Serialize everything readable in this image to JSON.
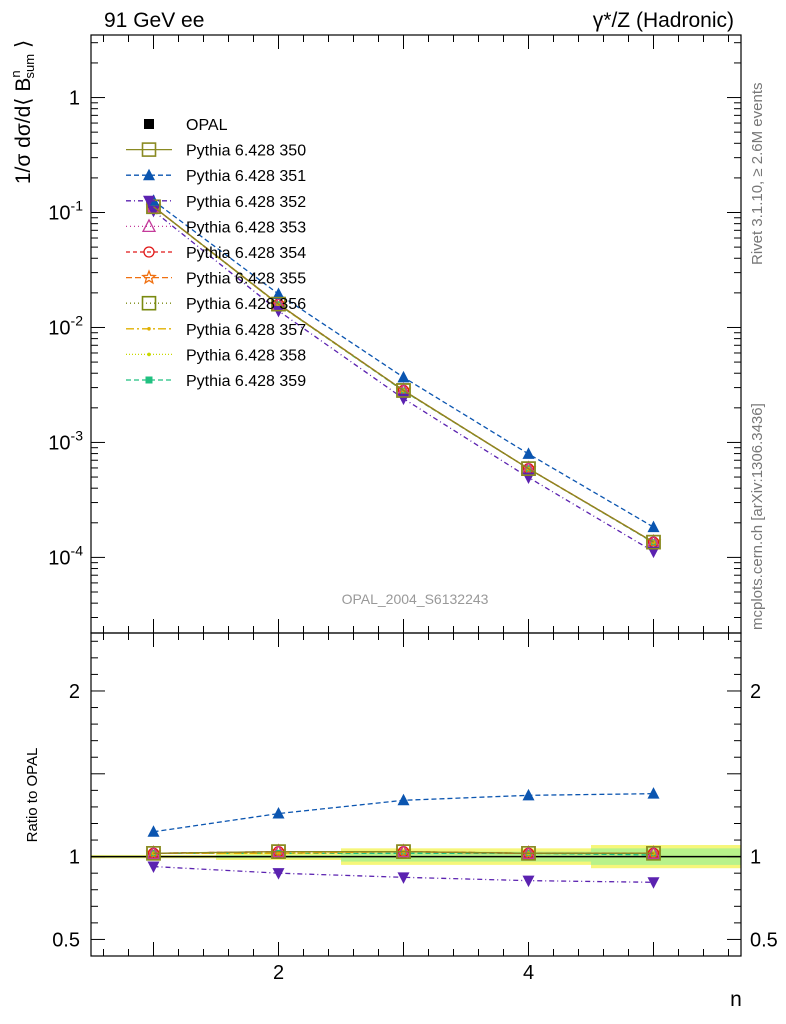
{
  "header": {
    "left": "91 GeV ee",
    "right": "γ*/Z (Hadronic)"
  },
  "side_labels": {
    "rivet": "Rivet 3.1.10, ≥ 2.6M events",
    "mcplots": "mcplots.cern.ch [arXiv:1306.3436]"
  },
  "chart_data": {
    "type": "line",
    "analysis_label": "OPAL_2004_S6132243",
    "xlabel": "n",
    "ylabel": "1/σ dσ/d⟨ B^n_sum ⟩",
    "ratio_ylabel": "Ratio to OPAL",
    "x": [
      1,
      2,
      3,
      4,
      5
    ],
    "xlim": [
      0.5,
      5.7
    ],
    "ylim": [
      2.2e-05,
      3.5
    ],
    "yscale": "log",
    "ratio_ylim": [
      0.4,
      2.35
    ],
    "upper_y_ticks": [
      "10^-4",
      "10^-3",
      "10^-2",
      "10^-1",
      "1"
    ],
    "x_ticks": [
      "2",
      "4"
    ],
    "ratio_y_ticks": [
      "0.5",
      "1",
      "2"
    ],
    "legend_position": "top-left",
    "reference": {
      "name": "OPAL",
      "values": [
        0.11,
        0.0155,
        0.00275,
        0.00058,
        0.000133
      ],
      "band_yellow": [
        0.01,
        0.02,
        0.05,
        0.05,
        0.07
      ],
      "band_green": [
        0.005,
        0.01,
        0.03,
        0.03,
        0.05
      ]
    },
    "series": [
      {
        "name": "Pythia 6.428 350",
        "color": "#8a8a22",
        "dash": "",
        "marker": "square-open",
        "ratio": [
          1.02,
          1.03,
          1.03,
          1.02,
          1.02
        ]
      },
      {
        "name": "Pythia 6.428 351",
        "color": "#0b55b0",
        "dash": "5,3",
        "marker": "triangle-up-filled",
        "ratio": [
          1.15,
          1.26,
          1.34,
          1.37,
          1.38
        ]
      },
      {
        "name": "Pythia 6.428 352",
        "color": "#5b22b0",
        "dash": "5,3,1,3",
        "marker": "triangle-down-filled",
        "ratio": [
          0.94,
          0.9,
          0.875,
          0.855,
          0.845
        ]
      },
      {
        "name": "Pythia 6.428 353",
        "color": "#c43a9a",
        "dash": "1,3",
        "marker": "triangle-up-open",
        "ratio": [
          1.02,
          1.03,
          1.03,
          1.02,
          1.02
        ]
      },
      {
        "name": "Pythia 6.428 354",
        "color": "#e01818",
        "dash": "4,3",
        "marker": "circle-open",
        "ratio": [
          1.02,
          1.03,
          1.03,
          1.02,
          1.02
        ]
      },
      {
        "name": "Pythia 6.428 355",
        "color": "#f07010",
        "dash": "6,3",
        "marker": "star-open",
        "ratio": [
          1.02,
          1.03,
          1.03,
          1.02,
          1.02
        ]
      },
      {
        "name": "Pythia 6.428 356",
        "color": "#7a8a10",
        "dash": "1,3",
        "marker": "square-open",
        "ratio": [
          1.02,
          1.03,
          1.03,
          1.02,
          1.02
        ]
      },
      {
        "name": "Pythia 6.428 357",
        "color": "#e0b000",
        "dash": "8,3,2,3",
        "marker": "dot",
        "ratio": [
          1.02,
          1.02,
          1.03,
          1.02,
          1.02
        ]
      },
      {
        "name": "Pythia 6.428 358",
        "color": "#c8d800",
        "dash": "1,2",
        "marker": "dot",
        "ratio": [
          1.02,
          1.02,
          1.03,
          1.02,
          1.02
        ]
      },
      {
        "name": "Pythia 6.428 359",
        "color": "#20c080",
        "dash": "5,3",
        "marker": "square-filled",
        "ratio": [
          1.02,
          1.02,
          1.02,
          1.02,
          1.01
        ]
      }
    ]
  }
}
